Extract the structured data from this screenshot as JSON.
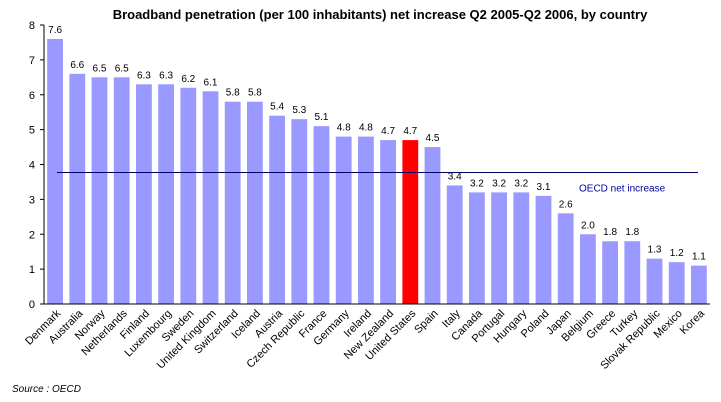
{
  "chart_data": {
    "type": "bar",
    "title": "Broadband penetration (per 100 inhabitants) net increase Q2 2005-Q2 2006, by country",
    "xlabel": "",
    "ylabel": "",
    "ylim": [
      0,
      8
    ],
    "yticks": [
      0,
      1,
      2,
      3,
      4,
      5,
      6,
      7,
      8
    ],
    "categories": [
      "Denmark",
      "Australia",
      "Norway",
      "Netherlands",
      "Finland",
      "Luxembourg",
      "Sweden",
      "United Kingdom",
      "Switzerland",
      "Iceland",
      "Austria",
      "Czech Republic",
      "France",
      "Germany",
      "Ireland",
      "New Zealand",
      "United States",
      "Spain",
      "Italy",
      "Canada",
      "Portugal",
      "Hungary",
      "Poland",
      "Japan",
      "Belgium",
      "Greece",
      "Turkey",
      "Slovak Republic",
      "Mexico",
      "Korea"
    ],
    "values": [
      7.6,
      6.6,
      6.5,
      6.5,
      6.3,
      6.3,
      6.2,
      6.1,
      5.8,
      5.8,
      5.4,
      5.3,
      5.1,
      4.8,
      4.8,
      4.7,
      4.7,
      4.5,
      3.4,
      3.2,
      3.2,
      3.2,
      3.1,
      2.6,
      2.0,
      1.8,
      1.8,
      1.3,
      1.2,
      1.1
    ],
    "data_labels": [
      "7.6",
      "6.6",
      "6.5",
      "6.5",
      "6.3",
      "6.3",
      "6.2",
      "6.1",
      "5.8",
      "5.8",
      "5.4",
      "5.3",
      "5.1",
      "4.8",
      "4.8",
      "4.7",
      "4.7",
      "4.5",
      "3.4",
      "3.2",
      "3.2",
      "3.2",
      "3.1",
      "2.6",
      "2.0",
      "1.8",
      "1.8",
      "1.3",
      "1.2",
      "1.1"
    ],
    "highlight_index": 16,
    "bar_color": "#9999ff",
    "highlight_color": "#ff0000",
    "reference_line": {
      "label": "OECD net increase",
      "value": 3.77,
      "color": "#000066",
      "label_color": "#000099"
    },
    "grid": false,
    "legend": "none",
    "source": "Source :  OECD"
  }
}
